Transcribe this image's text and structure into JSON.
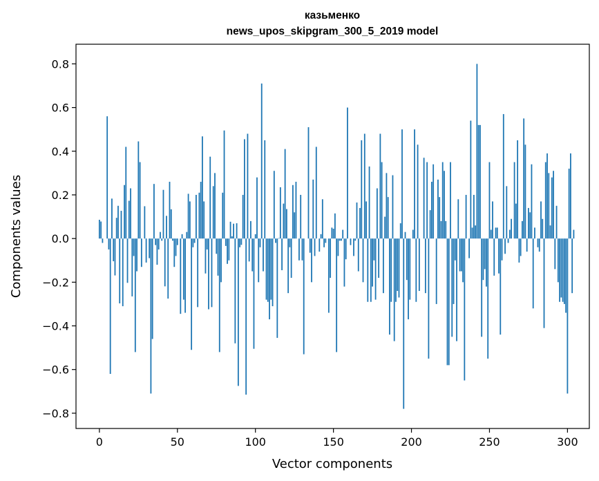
{
  "chart_data": {
    "type": "bar",
    "title": "казьменко",
    "subtitle": "news_upos_skipgram_300_5_2019 model",
    "xlabel": "Vector components",
    "ylabel": "Components values",
    "xlim": [
      -15,
      314
    ],
    "ylim": [
      -0.87,
      0.89
    ],
    "xticks": [
      0,
      50,
      100,
      150,
      200,
      250,
      300
    ],
    "xtick_labels": [
      "0",
      "50",
      "100",
      "150",
      "200",
      "250",
      "300"
    ],
    "yticks": [
      -0.8,
      -0.6,
      -0.4,
      -0.2,
      0.0,
      0.2,
      0.4,
      0.6,
      0.8
    ],
    "ytick_labels": [
      "−0.8",
      "−0.6",
      "−0.4",
      "−0.2",
      "0.0",
      "0.2",
      "0.4",
      "0.6",
      "0.8"
    ],
    "bar_color": "#1f77b4",
    "grid": false,
    "values": [
      0.086,
      0.078,
      -0.02,
      0.0,
      0.0,
      0.56,
      -0.05,
      -0.62,
      0.183,
      -0.104,
      -0.169,
      0.095,
      0.15,
      -0.297,
      0.127,
      -0.31,
      0.245,
      0.42,
      -0.203,
      0.173,
      0.23,
      -0.265,
      -0.08,
      -0.52,
      -0.15,
      0.445,
      0.35,
      -0.13,
      0.0,
      0.148,
      -0.11,
      0.0,
      -0.09,
      -0.71,
      -0.46,
      0.25,
      -0.03,
      -0.12,
      -0.05,
      0.03,
      -0.01,
      0.223,
      -0.219,
      0.104,
      -0.275,
      0.26,
      0.134,
      -0.01,
      -0.13,
      -0.08,
      -0.03,
      0.0,
      -0.345,
      0.02,
      -0.28,
      -0.34,
      0.03,
      0.205,
      0.17,
      -0.51,
      -0.04,
      -0.02,
      0.2,
      -0.314,
      0.21,
      0.26,
      0.468,
      0.17,
      -0.16,
      -0.05,
      -0.324,
      0.375,
      -0.314,
      0.24,
      0.3,
      -0.07,
      -0.17,
      -0.52,
      -0.2,
      0.21,
      0.495,
      -0.034,
      -0.116,
      -0.1,
      0.077,
      0.01,
      0.068,
      -0.48,
      0.07,
      -0.675,
      -0.04,
      -0.029,
      0.2,
      0.455,
      -0.715,
      0.48,
      -0.105,
      0.08,
      -0.15,
      -0.505,
      0.02,
      0.28,
      -0.2,
      -0.04,
      0.71,
      -0.15,
      0.45,
      -0.28,
      -0.29,
      -0.37,
      -0.28,
      -0.31,
      0.31,
      -0.02,
      -0.455,
      0.002,
      0.235,
      -0.145,
      0.16,
      0.41,
      0.135,
      -0.25,
      -0.04,
      -0.18,
      0.245,
      0.12,
      0.26,
      0.0,
      -0.1,
      0.2,
      -0.1,
      -0.53,
      0.0,
      0.0,
      0.51,
      -0.065,
      -0.2,
      0.27,
      -0.08,
      0.42,
      0.0,
      -0.06,
      0.02,
      0.18,
      -0.04,
      -0.02,
      0.0,
      -0.34,
      -0.18,
      0.05,
      0.045,
      0.115,
      -0.52,
      -0.08,
      -0.01,
      -0.01,
      0.04,
      -0.22,
      -0.095,
      0.6,
      0.0,
      -0.03,
      0.0,
      -0.08,
      -0.01,
      0.165,
      -0.15,
      0.14,
      0.45,
      -0.2,
      0.48,
      0.17,
      -0.29,
      0.33,
      -0.29,
      -0.22,
      -0.1,
      -0.28,
      0.23,
      -0.18,
      0.48,
      0.35,
      -0.25,
      0.1,
      0.3,
      0.19,
      -0.44,
      -0.29,
      0.29,
      -0.47,
      -0.29,
      -0.24,
      -0.27,
      0.07,
      0.5,
      -0.78,
      0.03,
      -0.19,
      -0.37,
      -0.28,
      0.0,
      0.04,
      0.5,
      -0.29,
      0.43,
      -0.24,
      0.0,
      0.0,
      0.37,
      -0.25,
      0.35,
      -0.55,
      0.13,
      0.26,
      0.34,
      0.0,
      -0.3,
      0.27,
      0.19,
      0.08,
      0.35,
      0.31,
      0.08,
      -0.58,
      -0.58,
      0.35,
      -0.45,
      -0.3,
      -0.1,
      -0.47,
      0.18,
      -0.15,
      -0.15,
      -0.2,
      -0.65,
      0.2,
      0.0,
      -0.09,
      0.54,
      0.05,
      0.2,
      0.06,
      0.8,
      0.52,
      0.52,
      -0.45,
      -0.19,
      -0.14,
      -0.22,
      -0.55,
      0.35,
      0.04,
      0.17,
      -0.17,
      0.05,
      0.05,
      -0.16,
      -0.44,
      -0.1,
      0.57,
      -0.07,
      0.24,
      -0.02,
      0.04,
      0.09,
      0.0,
      0.35,
      0.16,
      0.45,
      -0.11,
      -0.08,
      0.08,
      0.55,
      0.43,
      -0.06,
      0.14,
      0.12,
      0.34,
      -0.32,
      0.05,
      0.0,
      -0.04,
      -0.06,
      0.17,
      0.09,
      -0.41,
      0.35,
      0.39,
      0.3,
      0.06,
      0.28,
      0.31,
      -0.14,
      0.15,
      -0.2,
      -0.29,
      -0.27,
      -0.29,
      -0.3,
      -0.34,
      -0.71,
      0.32,
      0.39,
      -0.25,
      0.04
    ]
  }
}
